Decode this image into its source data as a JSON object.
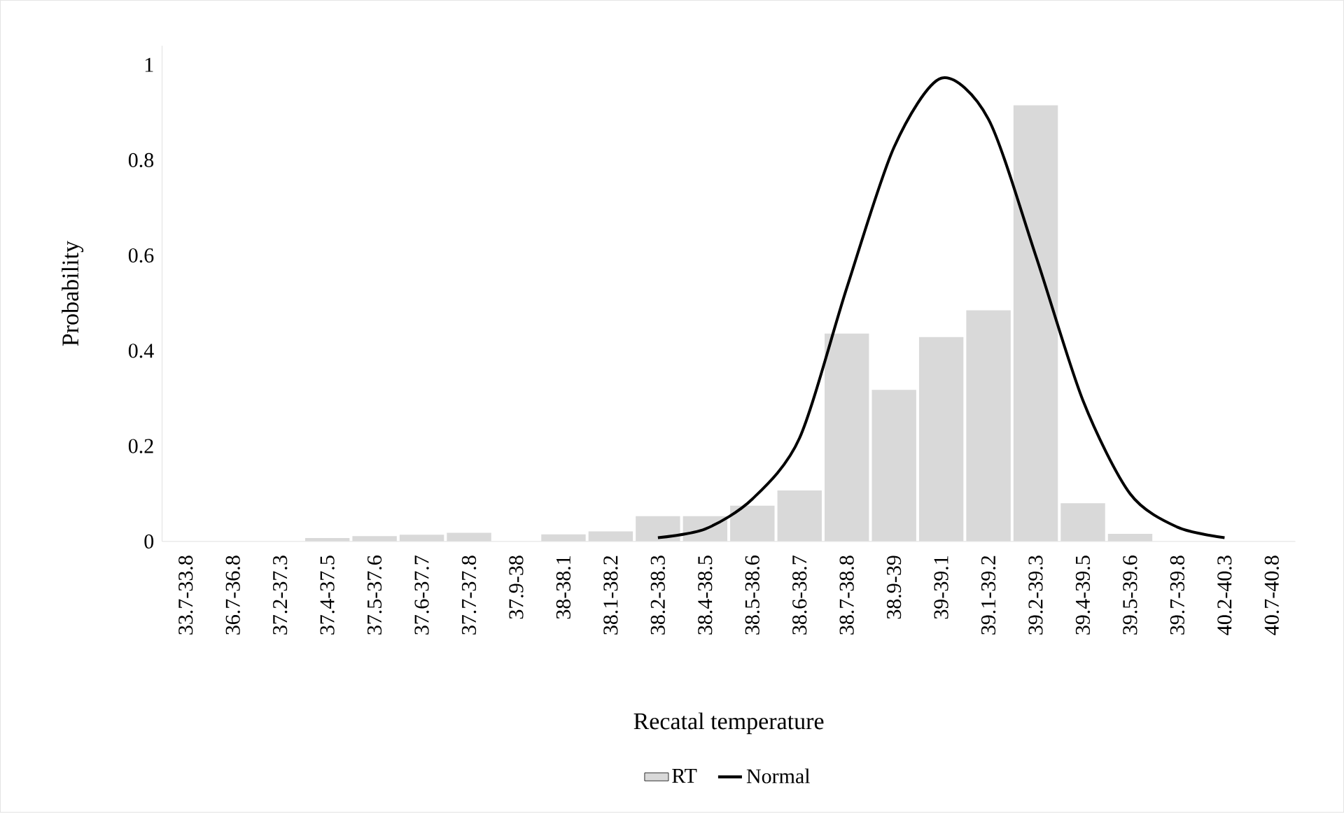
{
  "chart_data": {
    "type": "bar",
    "xlabel": "Recatal temperature",
    "ylabel": "Probability",
    "categories": [
      "33.7-33.8",
      "36.7-36.8",
      "37.2-37.3",
      "37.4-37.5",
      "37.5-37.6",
      "37.6-37.7",
      "37.7-37.8",
      "37.9-38",
      "38-38.1",
      "38.1-38.2",
      "38.2-38.3",
      "38.4-38.5",
      "38.5-38.6",
      "38.6-38.7",
      "38.7-38.8",
      "38.9-39",
      "39-39.1",
      "39.1-39.2",
      "39.2-39.3",
      "39.4-39.5",
      "39.5-39.6",
      "39.7-39.8",
      "40.2-40.3",
      "40.7-40.8"
    ],
    "series": [
      {
        "name": "RT",
        "color": "#d9d9d9",
        "values": [
          0,
          0,
          0,
          0.007,
          0.011,
          0.014,
          0.018,
          0,
          0.015,
          0.021,
          0.053,
          0.053,
          0.075,
          0.107,
          0.436,
          0.318,
          0.429,
          0.485,
          0.915,
          0.08,
          0.016,
          0,
          0,
          0
        ]
      },
      {
        "name": "Normal",
        "type": "line",
        "color": "#000000",
        "values": [
          null,
          null,
          null,
          null,
          null,
          null,
          null,
          null,
          null,
          null,
          0.008,
          0.026,
          0.089,
          0.217,
          0.532,
          0.827,
          0.972,
          0.886,
          0.6,
          0.296,
          0.1,
          0.03,
          0.008,
          null
        ]
      }
    ],
    "ylim": [
      0,
      1.04
    ],
    "yticks": [
      0,
      0.2,
      0.4,
      0.6,
      0.8,
      1
    ],
    "grid": false,
    "legend": "bottom"
  }
}
